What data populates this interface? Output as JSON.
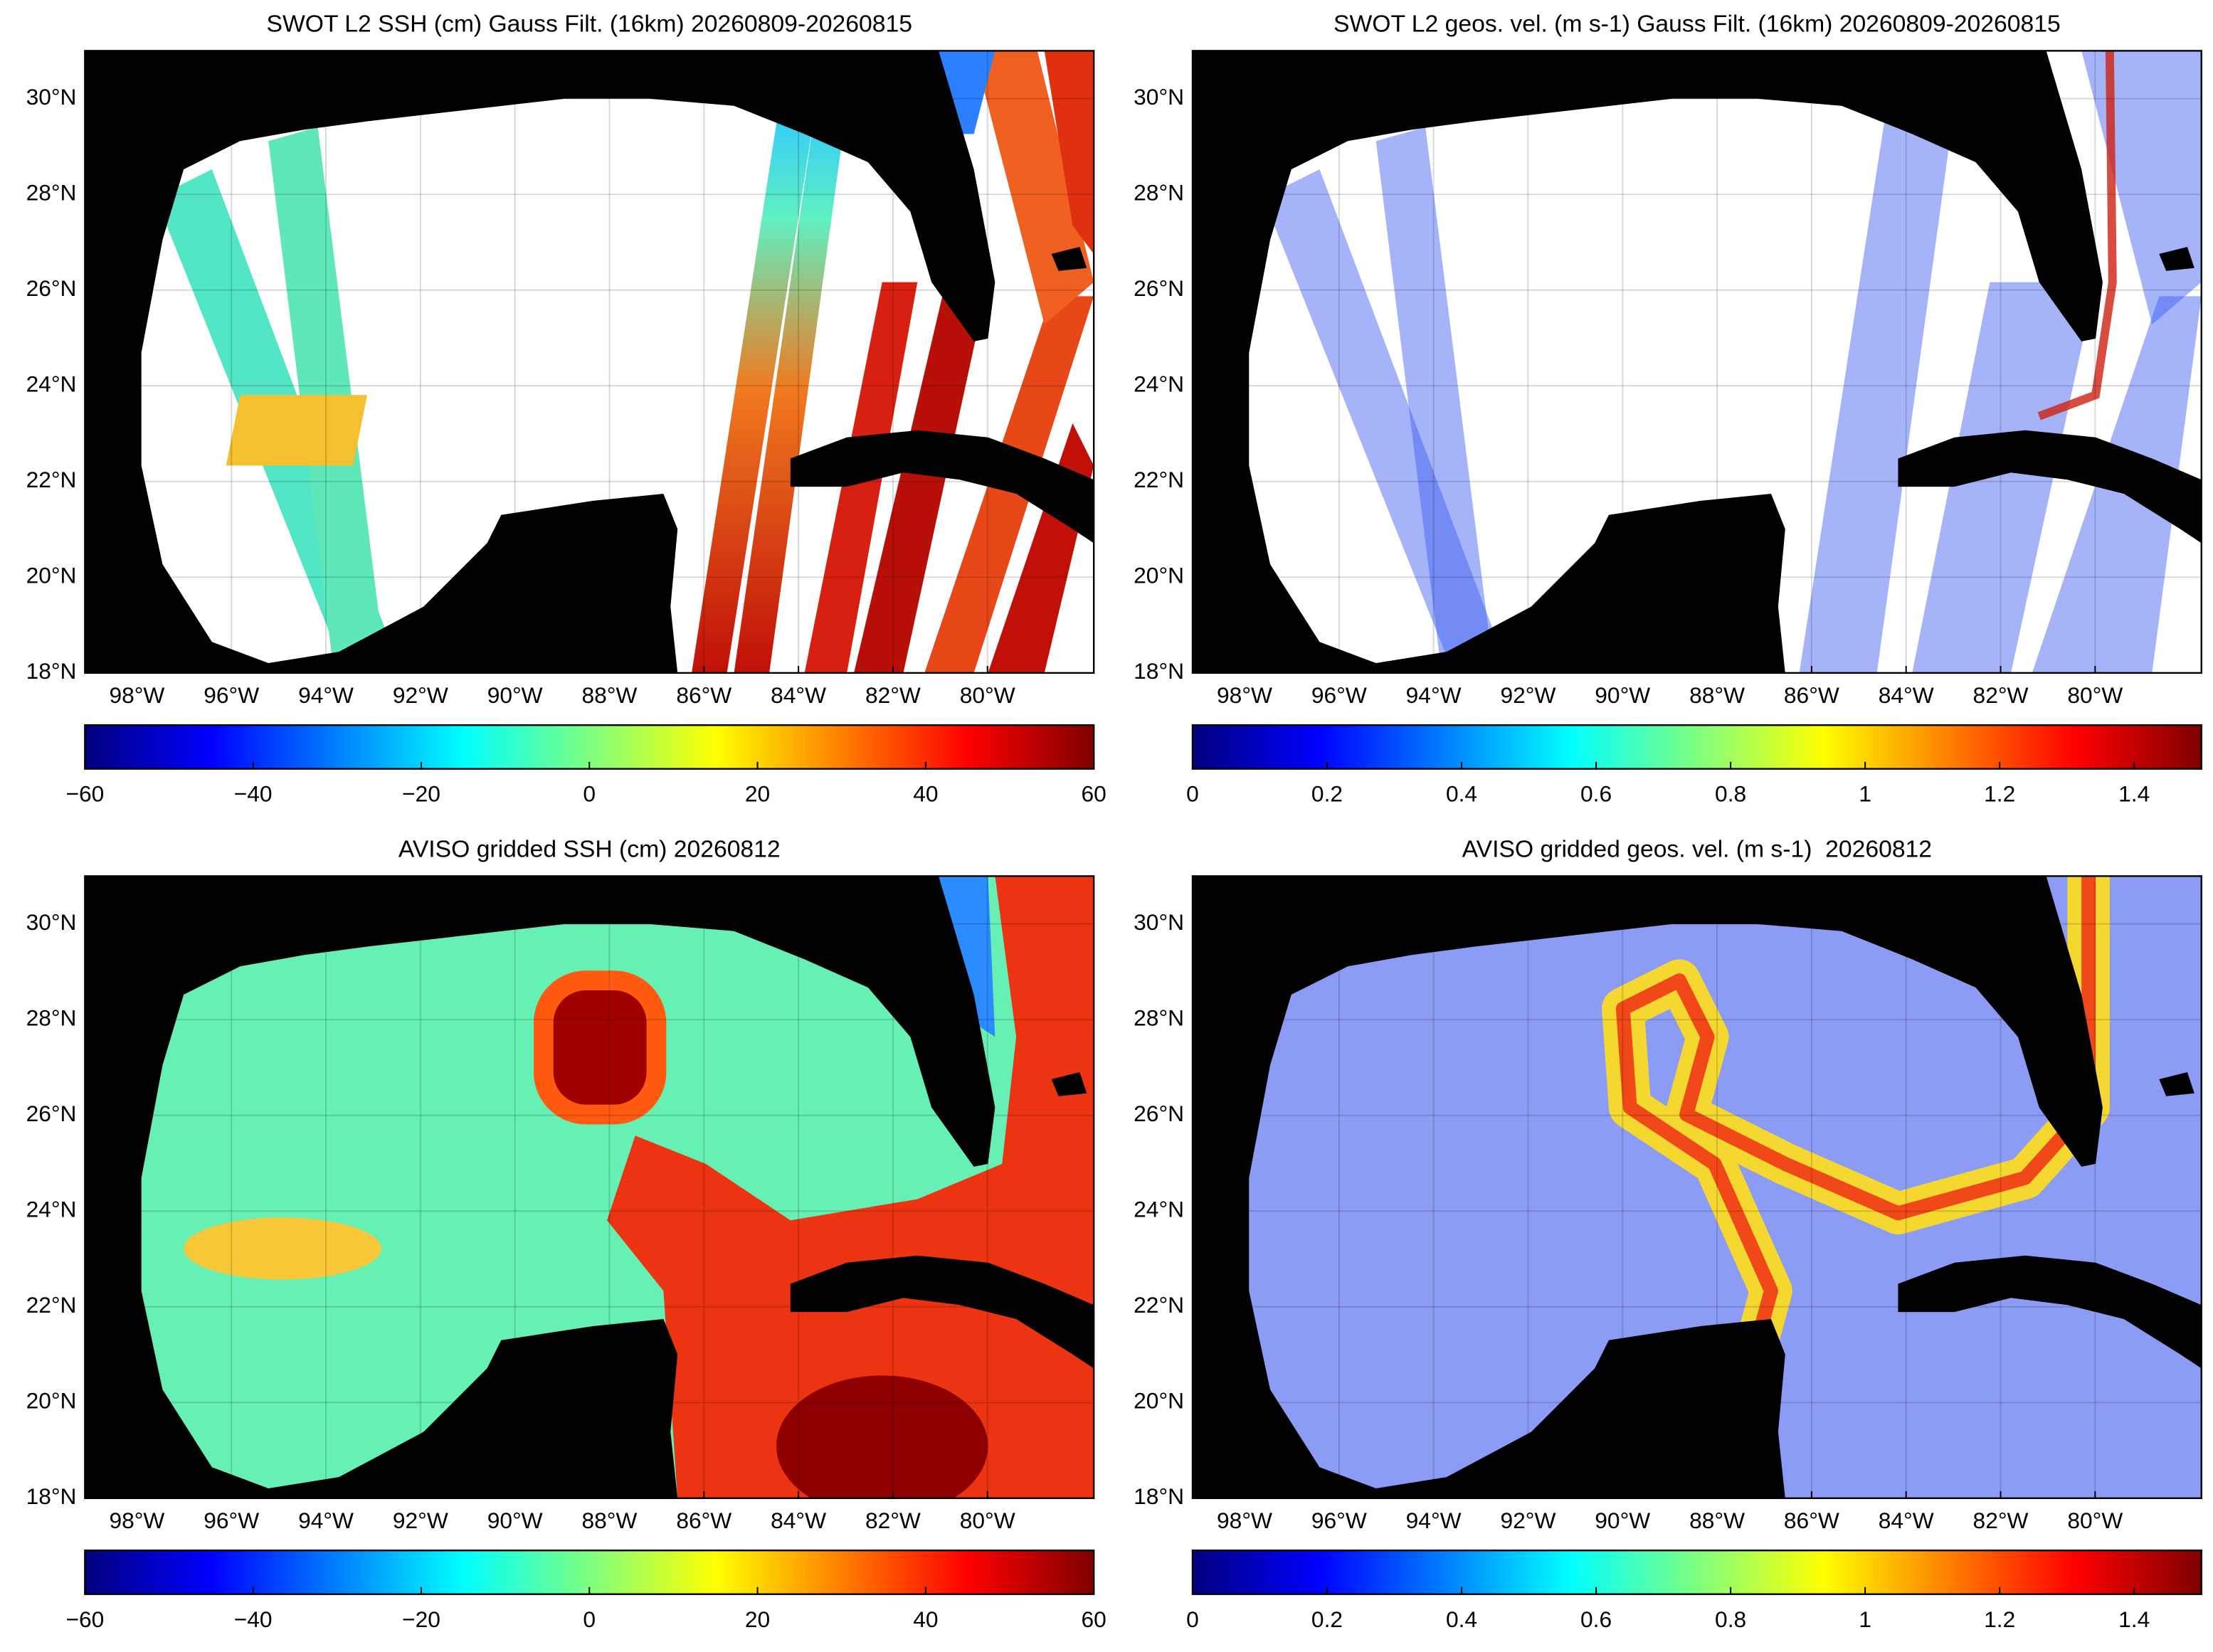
{
  "figure": {
    "panels": [
      {
        "title": "SWOT L2 SSH (cm) Gauss Filt. (16km) 20260809-20260815",
        "lon_lim": [
          -99.1,
          -77.75
        ],
        "lat_lim": [
          18,
          31
        ],
        "lon_ticks": [
          {
            "value": -98,
            "label": "98°W"
          },
          {
            "value": -96,
            "label": "96°W"
          },
          {
            "value": -94,
            "label": "94°W"
          },
          {
            "value": -92,
            "label": "92°W"
          },
          {
            "value": -90,
            "label": "90°W"
          },
          {
            "value": -88,
            "label": "88°W"
          },
          {
            "value": -86,
            "label": "86°W"
          },
          {
            "value": -84,
            "label": "84°W"
          },
          {
            "value": -82,
            "label": "82°W"
          },
          {
            "value": -80,
            "label": "80°W"
          }
        ],
        "lat_ticks": [
          {
            "value": 18,
            "label": "18°N"
          },
          {
            "value": 20,
            "label": "20°N"
          },
          {
            "value": 22,
            "label": "22°N"
          },
          {
            "value": 24,
            "label": "24°N"
          },
          {
            "value": 26,
            "label": "26°N"
          },
          {
            "value": 28,
            "label": "28°N"
          },
          {
            "value": 30,
            "label": "30°N"
          }
        ],
        "colorbar": {
          "colormap": "jet",
          "lim": [
            -60,
            60
          ],
          "ticks": [
            {
              "value": -60,
              "label": "−60"
            },
            {
              "value": -40,
              "label": "−40"
            },
            {
              "value": -20,
              "label": "−20"
            },
            0,
            20,
            40,
            60
          ]
        }
      },
      {
        "title": "SWOT L2 geos. vel. (m s-1) Gauss Filt. (16km) 20260809-20260815",
        "lon_lim": [
          -99.1,
          -77.75
        ],
        "lat_lim": [
          18,
          31
        ],
        "lon_ticks": [
          {
            "value": -98,
            "label": "98°W"
          },
          {
            "value": -96,
            "label": "96°W"
          },
          {
            "value": -94,
            "label": "94°W"
          },
          {
            "value": -92,
            "label": "92°W"
          },
          {
            "value": -90,
            "label": "90°W"
          },
          {
            "value": -88,
            "label": "88°W"
          },
          {
            "value": -86,
            "label": "86°W"
          },
          {
            "value": -84,
            "label": "84°W"
          },
          {
            "value": -82,
            "label": "82°W"
          },
          {
            "value": -80,
            "label": "80°W"
          }
        ],
        "lat_ticks": [
          {
            "value": 18,
            "label": "18°N"
          },
          {
            "value": 20,
            "label": "20°N"
          },
          {
            "value": 22,
            "label": "22°N"
          },
          {
            "value": 24,
            "label": "24°N"
          },
          {
            "value": 26,
            "label": "26°N"
          },
          {
            "value": 28,
            "label": "28°N"
          },
          {
            "value": 30,
            "label": "30°N"
          }
        ],
        "colorbar": {
          "colormap": "jet",
          "lim": [
            0,
            1.5
          ],
          "ticks": [
            0,
            0.2,
            0.4,
            0.6,
            0.8,
            1,
            1.2,
            1.4
          ]
        }
      },
      {
        "title": "AVISO gridded SSH (cm) 20260812",
        "lon_lim": [
          -99.1,
          -77.75
        ],
        "lat_lim": [
          18,
          31
        ],
        "lon_ticks": [
          {
            "value": -98,
            "label": "98°W"
          },
          {
            "value": -96,
            "label": "96°W"
          },
          {
            "value": -94,
            "label": "94°W"
          },
          {
            "value": -92,
            "label": "92°W"
          },
          {
            "value": -90,
            "label": "90°W"
          },
          {
            "value": -88,
            "label": "88°W"
          },
          {
            "value": -86,
            "label": "86°W"
          },
          {
            "value": -84,
            "label": "84°W"
          },
          {
            "value": -82,
            "label": "82°W"
          },
          {
            "value": -80,
            "label": "80°W"
          }
        ],
        "lat_ticks": [
          {
            "value": 18,
            "label": "18°N"
          },
          {
            "value": 20,
            "label": "20°N"
          },
          {
            "value": 22,
            "label": "22°N"
          },
          {
            "value": 24,
            "label": "24°N"
          },
          {
            "value": 26,
            "label": "26°N"
          },
          {
            "value": 28,
            "label": "28°N"
          },
          {
            "value": 30,
            "label": "30°N"
          }
        ],
        "colorbar": {
          "colormap": "jet",
          "lim": [
            -60,
            60
          ],
          "ticks": [
            {
              "value": -60,
              "label": "−60"
            },
            {
              "value": -40,
              "label": "−40"
            },
            {
              "value": -20,
              "label": "−20"
            },
            0,
            20,
            40,
            60
          ]
        }
      },
      {
        "title": "AVISO gridded geos. vel. (m s-1)  20260812",
        "lon_lim": [
          -99.1,
          -77.75
        ],
        "lat_lim": [
          18,
          31
        ],
        "lon_ticks": [
          {
            "value": -98,
            "label": "98°W"
          },
          {
            "value": -96,
            "label": "96°W"
          },
          {
            "value": -94,
            "label": "94°W"
          },
          {
            "value": -92,
            "label": "92°W"
          },
          {
            "value": -90,
            "label": "90°W"
          },
          {
            "value": -88,
            "label": "88°W"
          },
          {
            "value": -86,
            "label": "86°W"
          },
          {
            "value": -84,
            "label": "84°W"
          },
          {
            "value": -82,
            "label": "82°W"
          },
          {
            "value": -80,
            "label": "80°W"
          }
        ],
        "lat_ticks": [
          {
            "value": 18,
            "label": "18°N"
          },
          {
            "value": 20,
            "label": "20°N"
          },
          {
            "value": 22,
            "label": "22°N"
          },
          {
            "value": 24,
            "label": "24°N"
          },
          {
            "value": 26,
            "label": "26°N"
          },
          {
            "value": 28,
            "label": "28°N"
          },
          {
            "value": 30,
            "label": "30°N"
          }
        ],
        "colorbar": {
          "colormap": "jet",
          "lim": [
            0,
            1.5
          ],
          "ticks": [
            0,
            0.2,
            0.4,
            0.6,
            0.8,
            1,
            1.2,
            1.4
          ]
        }
      }
    ]
  }
}
